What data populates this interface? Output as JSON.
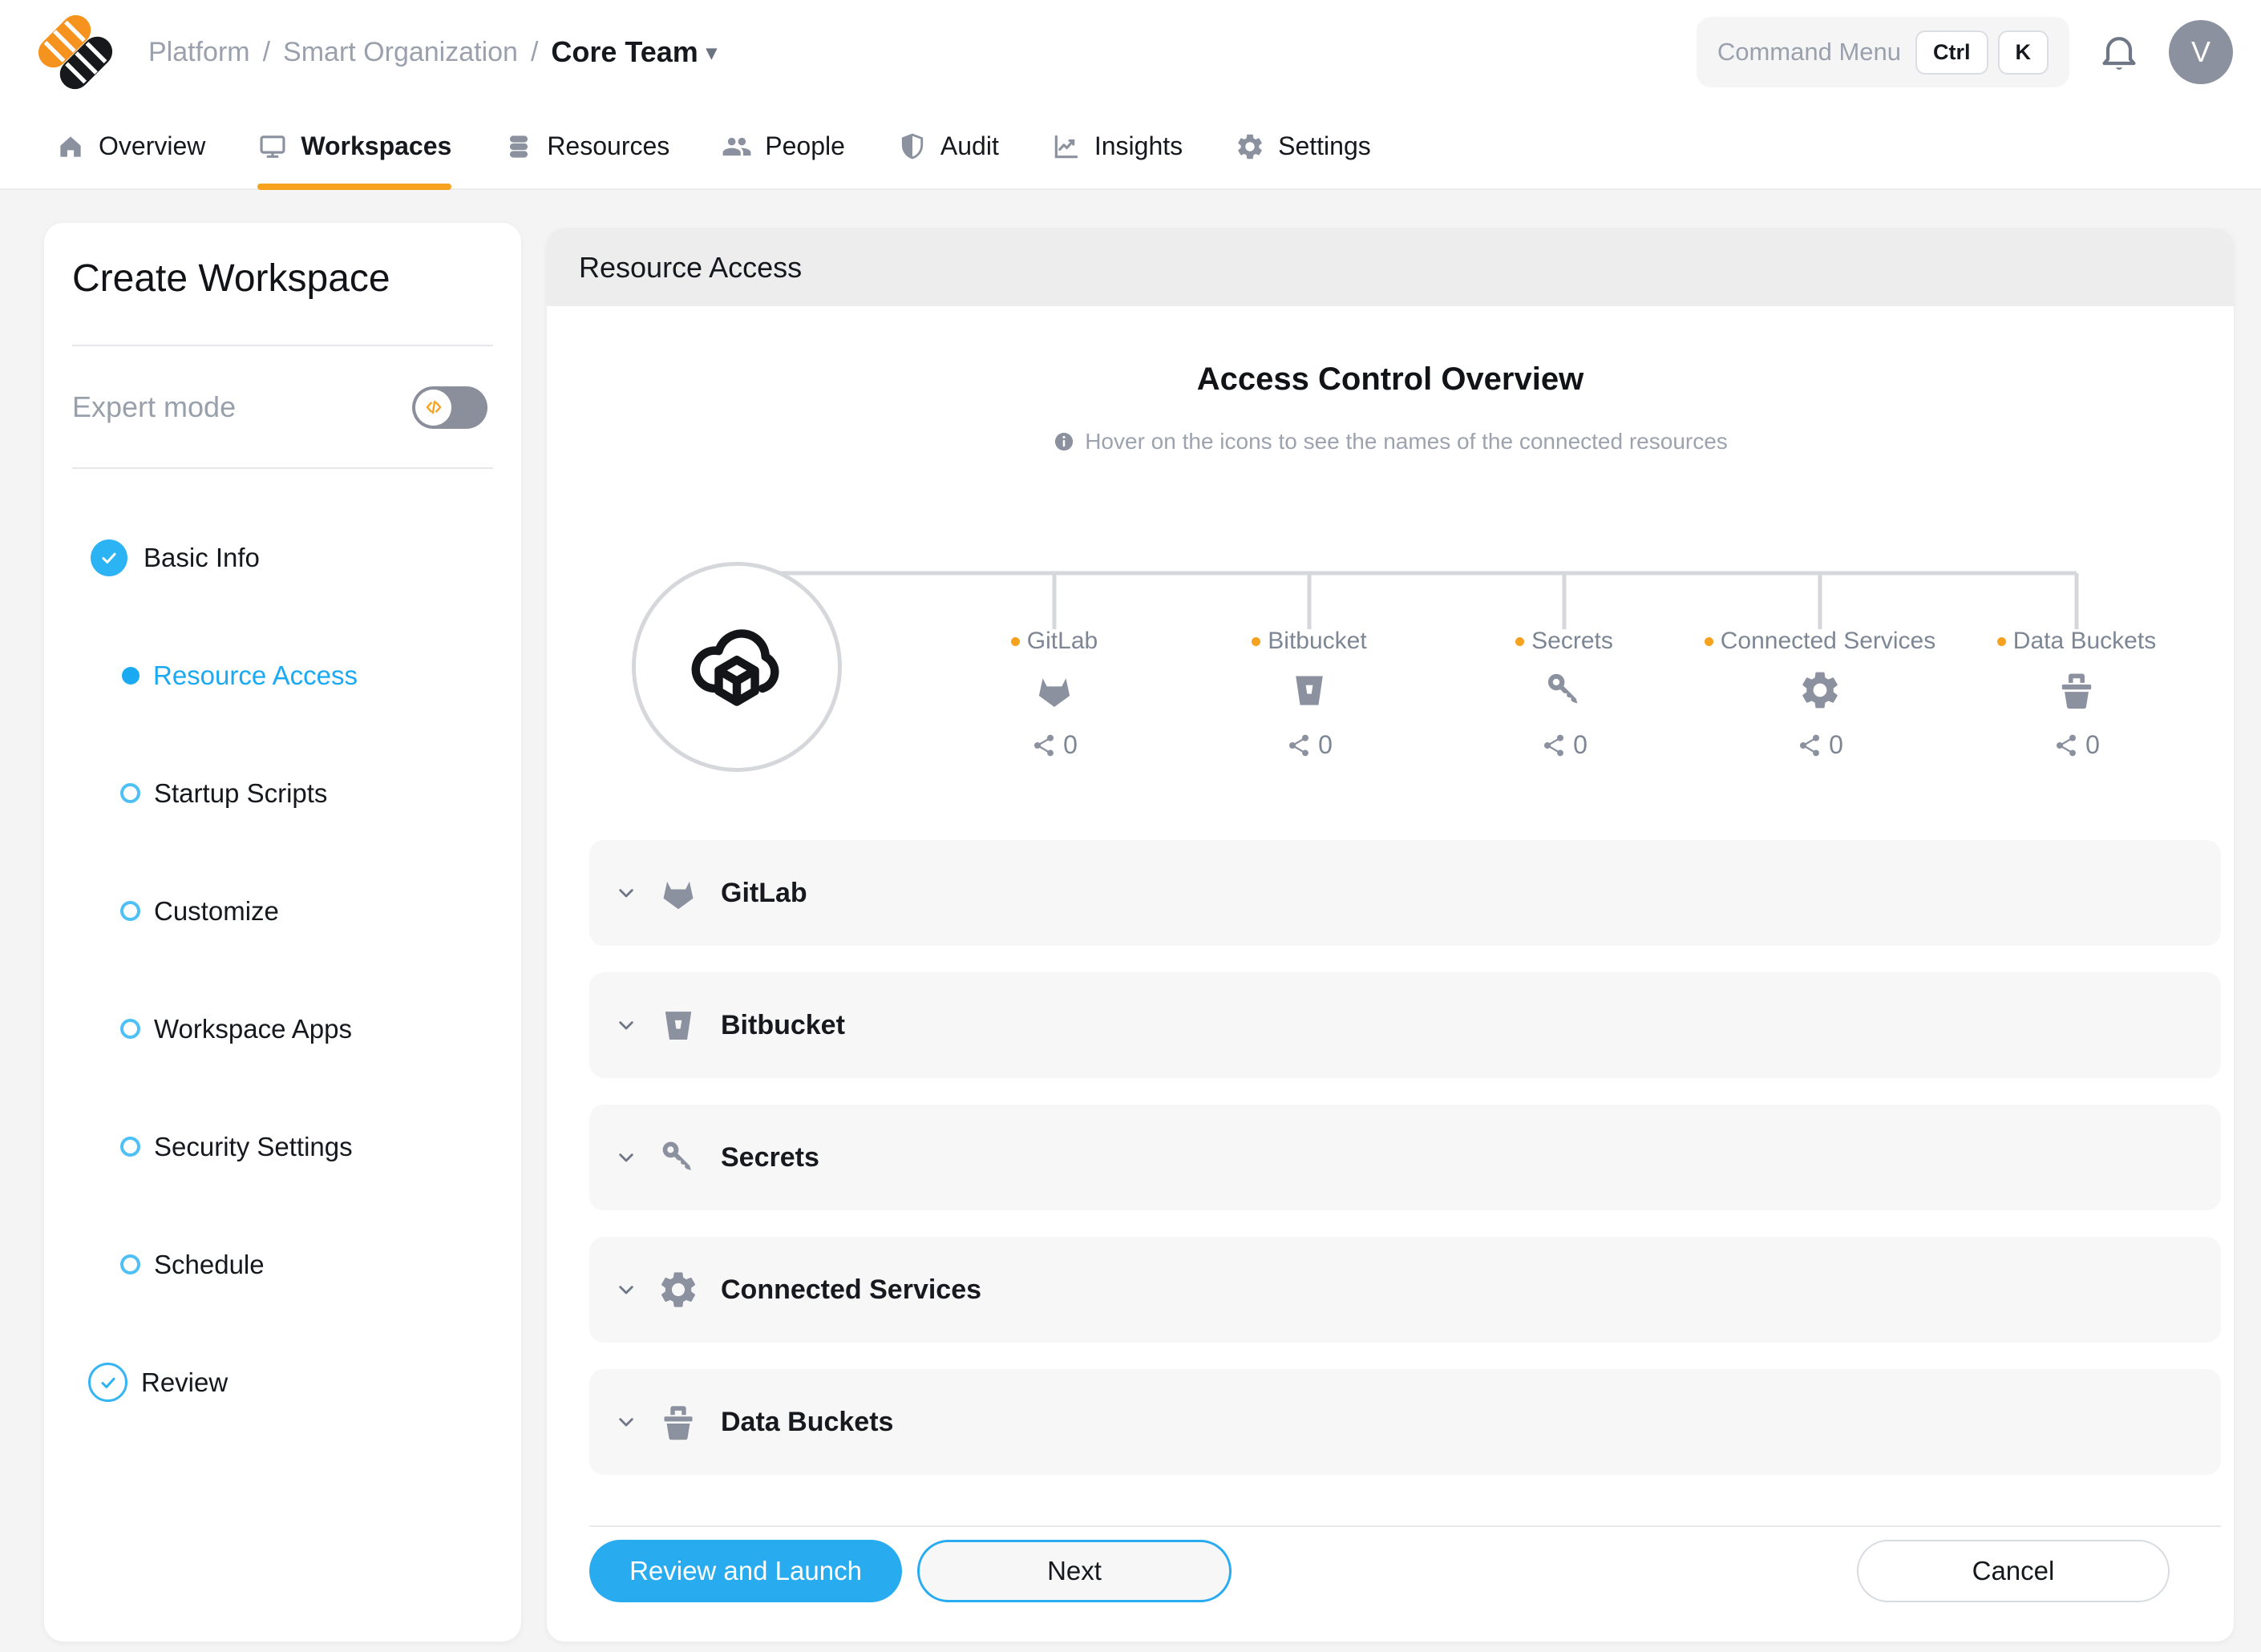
{
  "header": {
    "breadcrumb": {
      "items": [
        "Platform",
        "Smart Organization"
      ],
      "separator": "/",
      "current": "Core Team"
    },
    "command_menu": {
      "label": "Command Menu",
      "keys": [
        "Ctrl",
        "K"
      ]
    },
    "avatar_initial": "V"
  },
  "nav": {
    "tabs": [
      {
        "label": "Overview",
        "icon": "home",
        "active": false
      },
      {
        "label": "Workspaces",
        "icon": "monitor",
        "active": true
      },
      {
        "label": "Resources",
        "icon": "database",
        "active": false
      },
      {
        "label": "People",
        "icon": "people",
        "active": false
      },
      {
        "label": "Audit",
        "icon": "shield",
        "active": false
      },
      {
        "label": "Insights",
        "icon": "chart",
        "active": false
      },
      {
        "label": "Settings",
        "icon": "gear",
        "active": false
      }
    ]
  },
  "sidebar": {
    "title": "Create Workspace",
    "expert_mode_label": "Expert mode",
    "expert_mode_on": false,
    "steps": [
      {
        "label": "Basic Info",
        "state": "completed"
      },
      {
        "label": "Resource Access",
        "state": "active"
      },
      {
        "label": "Startup Scripts",
        "state": "pending"
      },
      {
        "label": "Customize",
        "state": "pending"
      },
      {
        "label": "Workspace Apps",
        "state": "pending"
      },
      {
        "label": "Security Settings",
        "state": "pending"
      },
      {
        "label": "Schedule",
        "state": "pending"
      },
      {
        "label": "Review",
        "state": "review"
      }
    ]
  },
  "main": {
    "panel_title": "Resource Access",
    "overview_title": "Access Control Overview",
    "hint": "Hover on the icons to see the names of the connected resources",
    "resources": [
      {
        "name": "GitLab",
        "icon": "gitlab",
        "share_count": "0"
      },
      {
        "name": "Bitbucket",
        "icon": "bitbucket",
        "share_count": "0"
      },
      {
        "name": "Secrets",
        "icon": "key",
        "share_count": "0"
      },
      {
        "name": "Connected Services",
        "icon": "gear",
        "share_count": "0"
      },
      {
        "name": "Data Buckets",
        "icon": "basket",
        "share_count": "0"
      }
    ],
    "buttons": {
      "primary": "Review and Launch",
      "secondary": "Next",
      "cancel": "Cancel"
    }
  },
  "colors": {
    "accent_blue": "#29ABF0",
    "accent_orange": "#F6A21F",
    "icon_gray": "#8B919E"
  }
}
